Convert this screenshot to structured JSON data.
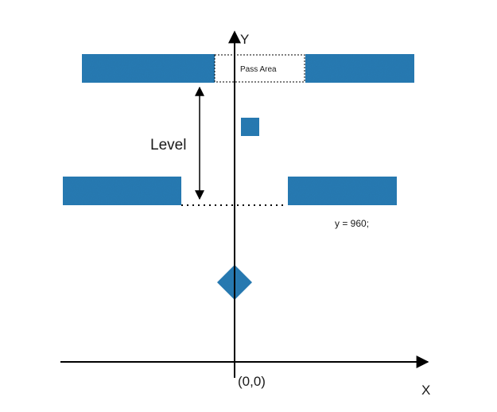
{
  "axes": {
    "x_label": "X",
    "y_label": "Y",
    "origin_label": "(0,0)"
  },
  "annotations": {
    "level_label": "Level",
    "pass_area_label": "Pass Area",
    "height_label": "y = 960;"
  },
  "colors": {
    "platform_fill": "#2c7db5",
    "axis": "#000000",
    "text": "#1a1a1a",
    "dotted_line": "#000000"
  }
}
